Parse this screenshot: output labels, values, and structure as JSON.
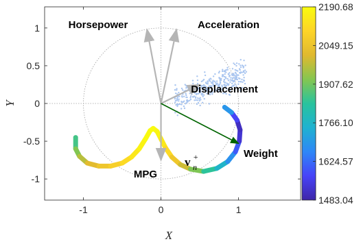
{
  "chart_data": {
    "type": "scatter",
    "xlabel": "X",
    "ylabel": "Y",
    "xlim": [
      -1.5,
      1.8
    ],
    "ylim": [
      -1.28,
      1.28
    ],
    "xticks": [
      "-1",
      "0",
      "1"
    ],
    "yticks": [
      "1",
      "0.5",
      "0",
      "-0.5",
      "-1"
    ],
    "grid": false,
    "unit_circle": true,
    "zero_lines": true,
    "variables": [
      {
        "name": "Horsepower",
        "x": -0.18,
        "y": 0.98
      },
      {
        "name": "Acceleration",
        "x": 0.2,
        "y": 0.98
      },
      {
        "name": "Displacement",
        "x": 0.5,
        "y": 0.25
      },
      {
        "name": "MPG",
        "x": 0.0,
        "y": -0.75
      },
      {
        "name": "Weight",
        "x": 0.0,
        "y": -0.75
      }
    ],
    "projection_vector": {
      "label": "v",
      "superscript": "+",
      "subscript": "n",
      "x": 1.0,
      "y": -0.53,
      "color": "#006400"
    },
    "curve_points": [
      [
        -1.1,
        -0.45
      ],
      [
        -1.1,
        -0.6
      ],
      [
        -1.05,
        -0.7
      ],
      [
        -0.95,
        -0.79
      ],
      [
        -0.8,
        -0.83
      ],
      [
        -0.65,
        -0.83
      ],
      [
        -0.5,
        -0.79
      ],
      [
        -0.38,
        -0.71
      ],
      [
        -0.28,
        -0.6
      ],
      [
        -0.2,
        -0.47
      ],
      [
        -0.14,
        -0.36
      ],
      [
        -0.1,
        -0.33
      ],
      [
        -0.05,
        -0.37
      ],
      [
        0.0,
        -0.47
      ],
      [
        0.06,
        -0.59
      ],
      [
        0.14,
        -0.71
      ],
      [
        0.25,
        -0.81
      ],
      [
        0.38,
        -0.87
      ],
      [
        0.55,
        -0.9
      ],
      [
        0.72,
        -0.86
      ],
      [
        0.86,
        -0.77
      ],
      [
        0.96,
        -0.64
      ],
      [
        1.01,
        -0.5
      ],
      [
        1.02,
        -0.35
      ],
      [
        0.98,
        -0.22
      ],
      [
        0.91,
        -0.12
      ],
      [
        0.82,
        -0.05
      ]
    ],
    "curve_values": [
      1830,
      1895,
      1950,
      2000,
      2040,
      2070,
      2100,
      2130,
      2160,
      2185,
      2190,
      2190,
      2185,
      2165,
      2135,
      2090,
      2030,
      1960,
      1880,
      1800,
      1720,
      1640,
      1560,
      1500,
      1520,
      1620,
      1760
    ],
    "scatter_color": "#aac6f0",
    "colorbar": {
      "min": 1483.04,
      "max": 2190.68,
      "tick_labels": [
        "2190.68",
        "2049.15",
        "1907.62",
        "1766.10",
        "1624.57",
        "1483.04"
      ],
      "colormap": [
        "#3e26a8",
        "#4743f8",
        "#2e87f7",
        "#1fb2d0",
        "#29c39d",
        "#85c650",
        "#e0b92f",
        "#fdd428",
        "#f9fb0e"
      ]
    }
  }
}
